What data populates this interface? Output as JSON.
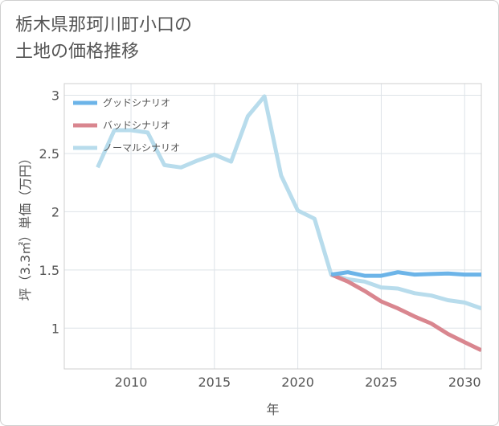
{
  "title_lines": [
    "栃木県那珂川町小口の",
    "土地の価格推移"
  ],
  "chart_data": {
    "type": "line",
    "title": "栃木県那珂川町小口の土地の価格推移",
    "xlabel": "年",
    "ylabel": "坪（3.3㎡）単価（万円）",
    "xlim": [
      2006,
      2031
    ],
    "ylim": [
      0.65,
      3.1
    ],
    "x_ticks": [
      2010,
      2015,
      2020,
      2025,
      2030
    ],
    "y_ticks": [
      1,
      1.5,
      2,
      2.5,
      3
    ],
    "x_tick_labels": [
      "2010",
      "2015",
      "2020",
      "2025",
      "2030"
    ],
    "y_tick_labels": [
      "1",
      "1.5",
      "2",
      "2.5",
      "3"
    ],
    "legend_position": "top-left",
    "series": [
      {
        "name": "グッドシナリオ",
        "color": "#6cb4e8",
        "x": [
          2022,
          2023,
          2024,
          2025,
          2026,
          2027,
          2028,
          2029,
          2030,
          2031
        ],
        "y": [
          1.46,
          1.48,
          1.45,
          1.45,
          1.48,
          1.46,
          1.465,
          1.47,
          1.46,
          1.46
        ]
      },
      {
        "name": "バッドシナリオ",
        "color": "#d9868f",
        "x": [
          2022,
          2023,
          2024,
          2025,
          2026,
          2027,
          2028,
          2029,
          2030,
          2031
        ],
        "y": [
          1.46,
          1.4,
          1.32,
          1.23,
          1.17,
          1.1,
          1.04,
          0.95,
          0.88,
          0.81
        ]
      },
      {
        "name": "ノーマルシナリオ",
        "color": "#b8dcec",
        "x": [
          2008,
          2009,
          2010,
          2011,
          2012,
          2013,
          2014,
          2015,
          2016,
          2017,
          2018,
          2019,
          2020,
          2021,
          2022,
          2023,
          2024,
          2025,
          2026,
          2027,
          2028,
          2029,
          2030,
          2031
        ],
        "y": [
          2.38,
          2.7,
          2.7,
          2.68,
          2.4,
          2.38,
          2.44,
          2.49,
          2.43,
          2.82,
          2.99,
          2.31,
          2.01,
          1.94,
          1.46,
          1.42,
          1.4,
          1.35,
          1.34,
          1.3,
          1.28,
          1.24,
          1.22,
          1.17
        ]
      }
    ]
  }
}
